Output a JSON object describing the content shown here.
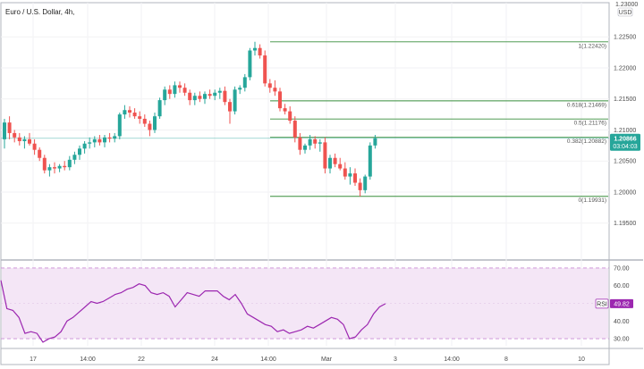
{
  "chart_data": [
    {
      "type": "candlestick",
      "title": "Euro / U.S. Dollar, 4h,",
      "currency_label": "USD",
      "top_partial_tick": "1.23000",
      "ylim": [
        1.1892,
        1.2305
      ],
      "y_ticks": [
        1.195,
        1.2,
        1.205,
        1.21,
        1.215,
        1.22,
        1.225
      ],
      "y_tick_labels": [
        "1.19500",
        "1.20000",
        "1.20500",
        "1.21000",
        "1.21500",
        "1.22000",
        "1.22500"
      ],
      "x_tick_labels": [
        "17",
        "14:00",
        "22",
        "24",
        "14:00",
        "Mar",
        "3",
        "14:00",
        "8",
        "10"
      ],
      "last_price": {
        "value": 1.20866,
        "label": "1.20866",
        "countdown": "03:04:03",
        "color": "#26a69a"
      },
      "up_color": "#26a69a",
      "down_color": "#ef5350",
      "fib_levels": [
        {
          "ratio": 1,
          "price": 1.2242,
          "label": "1(1.22420)"
        },
        {
          "ratio": 0.618,
          "price": 1.21469,
          "label": "0.618(1.21469)"
        },
        {
          "ratio": 0.5,
          "price": 1.21176,
          "label": "0.5(1.21176)"
        },
        {
          "ratio": 0.382,
          "price": 1.20882,
          "label": "0.382(1.20882)"
        },
        {
          "ratio": 0,
          "price": 1.19931,
          "label": "0(1.19931)"
        }
      ],
      "fib_color": "#388e3c",
      "candles": [
        [
          1.2085,
          1.2118,
          1.207,
          1.2112
        ],
        [
          1.2112,
          1.2122,
          1.2085,
          1.2095
        ],
        [
          1.2095,
          1.21,
          1.208,
          1.2088
        ],
        [
          1.2088,
          1.2095,
          1.2075,
          1.2082
        ],
        [
          1.2082,
          1.209,
          1.207,
          1.2085
        ],
        [
          1.2085,
          1.2095,
          1.2075,
          1.2078
        ],
        [
          1.2078,
          1.2085,
          1.206,
          1.2068
        ],
        [
          1.2068,
          1.2072,
          1.205,
          1.2055
        ],
        [
          1.2055,
          1.206,
          1.203,
          1.2035
        ],
        [
          1.2035,
          1.2045,
          1.2025,
          1.204
        ],
        [
          1.204,
          1.2048,
          1.203,
          1.2038
        ],
        [
          1.2038,
          1.2045,
          1.2032,
          1.2042
        ],
        [
          1.2042,
          1.205,
          1.2035,
          1.204
        ],
        [
          1.204,
          1.2058,
          1.2035,
          1.2052
        ],
        [
          1.2052,
          1.2065,
          1.2045,
          1.206
        ],
        [
          1.206,
          1.2075,
          1.2052,
          1.207
        ],
        [
          1.207,
          1.2082,
          1.2062,
          1.2078
        ],
        [
          1.2078,
          1.2088,
          1.207,
          1.208
        ],
        [
          1.208,
          1.209,
          1.2072,
          1.2085
        ],
        [
          1.2085,
          1.2092,
          1.2075,
          1.208
        ],
        [
          1.208,
          1.2092,
          1.2072,
          1.2088
        ],
        [
          1.2088,
          1.2095,
          1.208,
          1.2086
        ],
        [
          1.2086,
          1.2095,
          1.208,
          1.209
        ],
        [
          1.209,
          1.2128,
          1.2085,
          1.2125
        ],
        [
          1.2125,
          1.214,
          1.2118,
          1.2132
        ],
        [
          1.2132,
          1.2138,
          1.212,
          1.2128
        ],
        [
          1.2128,
          1.2135,
          1.2118,
          1.2122
        ],
        [
          1.2122,
          1.213,
          1.211,
          1.2118
        ],
        [
          1.2118,
          1.2125,
          1.2105,
          1.211
        ],
        [
          1.211,
          1.2115,
          1.209,
          1.21
        ],
        [
          1.21,
          1.2128,
          1.2095,
          1.2122
        ],
        [
          1.2122,
          1.2152,
          1.2118,
          1.2148
        ],
        [
          1.2148,
          1.217,
          1.214,
          1.2165
        ],
        [
          1.2165,
          1.2172,
          1.215,
          1.2158
        ],
        [
          1.2158,
          1.2178,
          1.2152,
          1.2172
        ],
        [
          1.2172,
          1.2178,
          1.216,
          1.2168
        ],
        [
          1.2168,
          1.2175,
          1.2155,
          1.216
        ],
        [
          1.216,
          1.2165,
          1.214,
          1.2148
        ],
        [
          1.2148,
          1.216,
          1.214,
          1.2155
        ],
        [
          1.2155,
          1.2162,
          1.2145,
          1.215
        ],
        [
          1.215,
          1.2162,
          1.2142,
          1.2158
        ],
        [
          1.2158,
          1.2165,
          1.215,
          1.2155
        ],
        [
          1.2155,
          1.2165,
          1.2148,
          1.216
        ],
        [
          1.216,
          1.2168,
          1.215,
          1.2163
        ],
        [
          1.2163,
          1.217,
          1.214,
          1.2145
        ],
        [
          1.2145,
          1.215,
          1.211,
          1.213
        ],
        [
          1.213,
          1.217,
          1.2125,
          1.2165
        ],
        [
          1.2165,
          1.2172,
          1.2158,
          1.2168
        ],
        [
          1.2168,
          1.219,
          1.2162,
          1.2185
        ],
        [
          1.2185,
          1.2232,
          1.218,
          1.2228
        ],
        [
          1.2228,
          1.2242,
          1.222,
          1.2232
        ],
        [
          1.2232,
          1.2238,
          1.2215,
          1.222
        ],
        [
          1.222,
          1.2228,
          1.217,
          1.2175
        ],
        [
          1.2175,
          1.2182,
          1.216,
          1.2168
        ],
        [
          1.2168,
          1.218,
          1.2155,
          1.2162
        ],
        [
          1.2162,
          1.2168,
          1.213,
          1.2135
        ],
        [
          1.2135,
          1.2142,
          1.2125,
          1.213
        ],
        [
          1.213,
          1.2138,
          1.211,
          1.2115
        ],
        [
          1.2115,
          1.2122,
          1.208,
          1.2088
        ],
        [
          1.2088,
          1.2095,
          1.206,
          1.2068
        ],
        [
          1.2068,
          1.2078,
          1.2062,
          1.2075
        ],
        [
          1.2075,
          1.2092,
          1.2068,
          1.2085
        ],
        [
          1.2085,
          1.209,
          1.207,
          1.2078
        ],
        [
          1.2078,
          1.2085,
          1.2065,
          1.208
        ],
        [
          1.208,
          1.2088,
          1.203,
          1.2038
        ],
        [
          1.2038,
          1.206,
          1.203,
          1.2055
        ],
        [
          1.2055,
          1.2062,
          1.204,
          1.2045
        ],
        [
          1.2045,
          1.2055,
          1.2035,
          1.2038
        ],
        [
          1.2038,
          1.2048,
          1.202,
          1.2025
        ],
        [
          1.2025,
          1.204,
          1.2012,
          1.203
        ],
        [
          1.203,
          1.2038,
          1.201,
          1.2015
        ],
        [
          1.2015,
          1.2022,
          1.1993,
          1.2003
        ],
        [
          1.2003,
          1.2028,
          1.1998,
          1.2025
        ],
        [
          1.2025,
          1.208,
          1.202,
          1.2075
        ],
        [
          1.2075,
          1.2092,
          1.207,
          1.2087
        ]
      ]
    },
    {
      "type": "line",
      "title": "RSI",
      "series": [
        {
          "name": "RSI",
          "color": "#9c27b0",
          "values": [
            63,
            47,
            46,
            42,
            33,
            34,
            33,
            28,
            30,
            31,
            34,
            40,
            42,
            45,
            48,
            51,
            50,
            51,
            53,
            55,
            56,
            58,
            59,
            61,
            60,
            56,
            55,
            56,
            54,
            48,
            52,
            56,
            55,
            54,
            57,
            57,
            57,
            54,
            52,
            55,
            50,
            44,
            42,
            40,
            38,
            37,
            34,
            35,
            33,
            34,
            35,
            37,
            36,
            38,
            40,
            42,
            41,
            38,
            30,
            31,
            35,
            38,
            44,
            48,
            49.82
          ]
        }
      ],
      "current_value": {
        "label": "RSI",
        "value": "49.82"
      },
      "ylim": [
        26,
        74
      ],
      "band": [
        30,
        70
      ],
      "y_ticks": [
        30,
        40,
        50,
        60,
        70
      ],
      "y_tick_labels": [
        "30.00",
        "40.00",
        "50.00",
        "60.00",
        "70.00"
      ]
    }
  ]
}
